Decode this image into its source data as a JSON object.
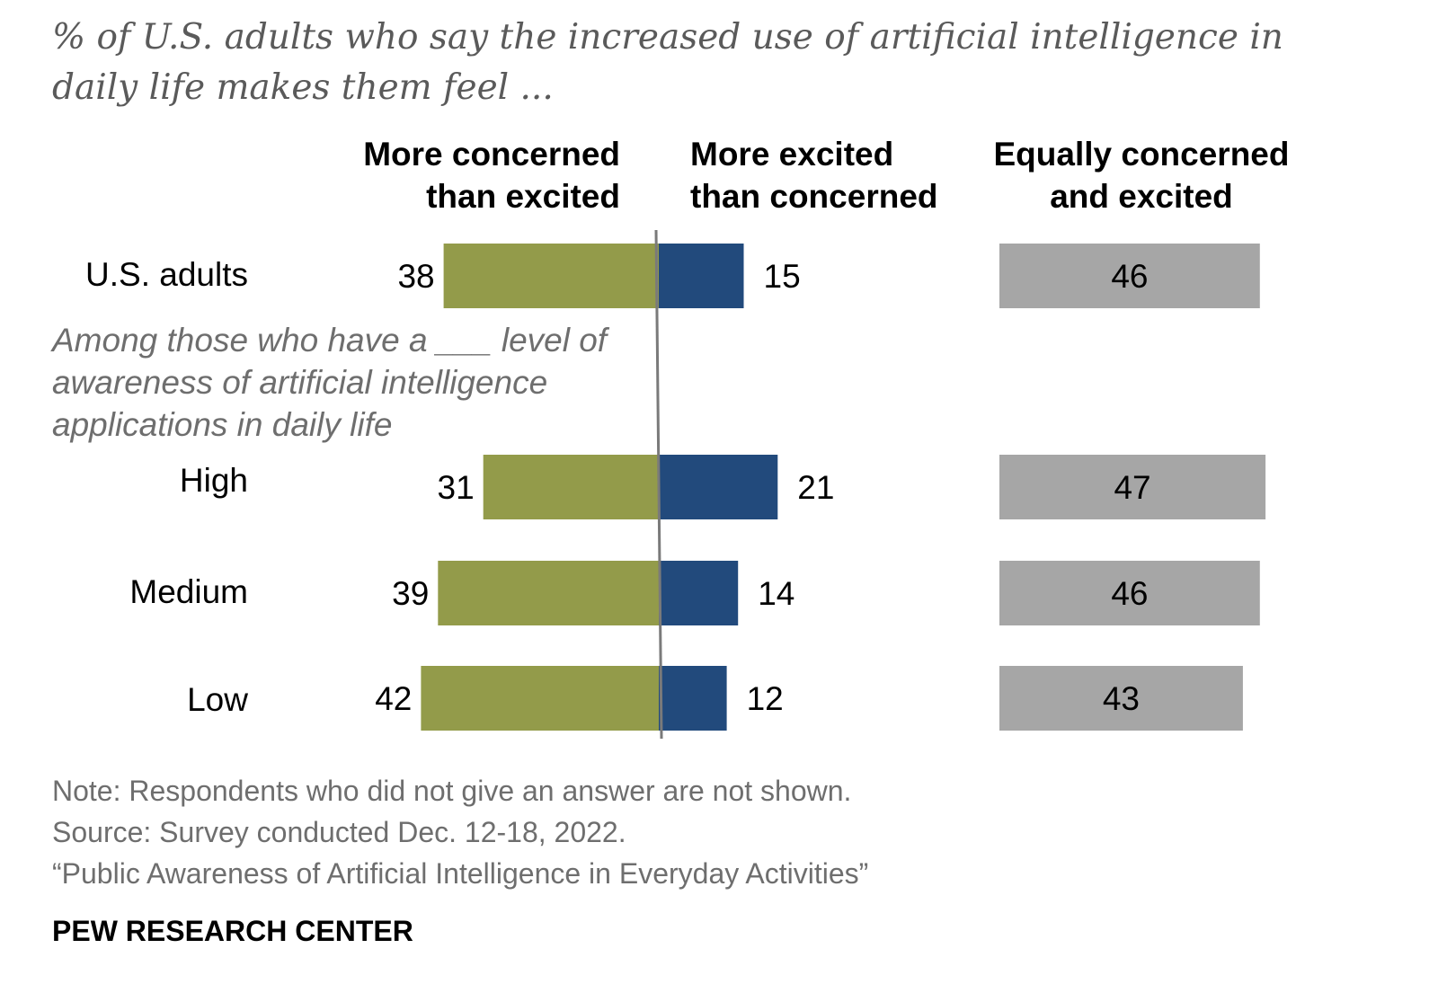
{
  "chart_data": {
    "type": "bar",
    "title": "% of U.S. adults who say the increased use of artificial intelligence in daily life makes them feel ...",
    "group_label": "Among those who have a ___ level of awareness of artificial intelligence applications in daily life",
    "categories": [
      "U.S. adults",
      "High",
      "Medium",
      "Low"
    ],
    "series": [
      {
        "name": "More concerned than excited",
        "header_lines": [
          "More concerned",
          "than excited"
        ],
        "color": "#939b4a",
        "values": [
          38,
          31,
          39,
          42
        ]
      },
      {
        "name": "More excited than concerned",
        "header_lines": [
          "More excited",
          "than concerned"
        ],
        "color": "#224a7c",
        "values": [
          15,
          21,
          14,
          12
        ]
      },
      {
        "name": "Equally concerned and excited",
        "header_lines": [
          "Equally concerned",
          "and excited"
        ],
        "color": "#a6a6a6",
        "values": [
          46,
          47,
          46,
          43
        ]
      }
    ],
    "layout": "diverging bars about a center line for the first two series; separate column for the third series"
  },
  "footer": {
    "note": "Note: Respondents who did not give an answer are not shown.",
    "source": "Source: Survey conducted Dec. 12-18, 2022.",
    "report": "“Public Awareness of Artificial Intelligence in Everyday Activities”",
    "brand": "PEW RESEARCH CENTER"
  }
}
